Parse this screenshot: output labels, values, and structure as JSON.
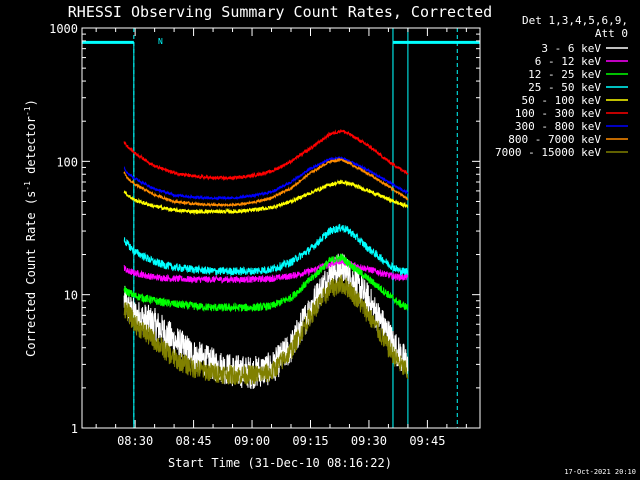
{
  "chart_data": {
    "type": "line",
    "title": "RHESSI Observing Summary Count Rates, Corrected",
    "xlabel": "Start Time (31-Dec-10 08:16:22)",
    "ylabel": "Corrected Count Rate (s⁻¹ detector⁻¹)",
    "ylabel_parts": [
      "Corrected Count Rate (s",
      "-1",
      " detector",
      "-1",
      ")"
    ],
    "y_scale": "log",
    "ylim": [
      1,
      1000
    ],
    "xlim": [
      "08:16:22",
      "09:58:30"
    ],
    "x_tick_labels": [
      "08:30",
      "08:45",
      "09:00",
      "09:15",
      "09:30",
      "09:45"
    ],
    "x_tick_values": [
      "08:30",
      "08:45",
      "09:00",
      "09:15",
      "09:30",
      "09:45"
    ],
    "y_tick_labels": [
      "1",
      "10",
      "100",
      "1000"
    ],
    "y_tick_values": [
      1,
      10,
      100,
      1000
    ],
    "grid": false,
    "legend_placement": "right",
    "legend_header": [
      "Det 1,3,4,5,6,9,",
      "Att 0"
    ],
    "timestamp": "17-Oct-2021 20:10",
    "night_marker_label": "N",
    "night_intervals": [
      [
        "08:16:22",
        "08:29:40"
      ],
      [
        "09:36:10",
        "09:58:30"
      ]
    ],
    "night_level": 780,
    "night_color": "#00ffff",
    "saa_lines": [
      "08:29:40",
      "09:52:40"
    ],
    "data_gap_lines": [
      "09:36:10",
      "09:40:00"
    ],
    "x": [
      "08:27:10",
      "08:28:00",
      "08:30:00",
      "08:35:00",
      "08:40:00",
      "08:45:00",
      "08:50:00",
      "08:55:00",
      "09:00:00",
      "09:05:00",
      "09:10:00",
      "09:15:00",
      "09:20:00",
      "09:23:00",
      "09:25:00",
      "09:30:00",
      "09:35:00",
      "09:38:00",
      "09:40:00"
    ],
    "series": [
      {
        "name": "3 - 6 keV",
        "color": "#ffffff",
        "noise": 0.5,
        "values": [
          9.0,
          8.0,
          7.0,
          6.0,
          4.5,
          3.5,
          3.0,
          2.7,
          2.6,
          2.8,
          4.0,
          8.0,
          14.0,
          16.0,
          14.0,
          9.0,
          5.0,
          3.5,
          3.0
        ]
      },
      {
        "name": "6 - 12 keV",
        "color": "#ff00ff",
        "noise": 0.1,
        "values": [
          16.0,
          15.0,
          14.5,
          13.5,
          13.2,
          13.0,
          13.0,
          13.0,
          13.0,
          13.2,
          13.8,
          15.0,
          17.0,
          18.0,
          17.0,
          15.5,
          14.0,
          13.5,
          13.5
        ]
      },
      {
        "name": "12 - 25 keV",
        "color": "#00ff00",
        "noise": 0.12,
        "values": [
          11.0,
          10.5,
          9.8,
          9.0,
          8.5,
          8.2,
          8.0,
          8.0,
          8.0,
          8.2,
          9.5,
          13.0,
          18.0,
          19.0,
          17.0,
          13.0,
          10.0,
          8.5,
          8.0
        ]
      },
      {
        "name": "25 - 50 keV",
        "color": "#00ffff",
        "noise": 0.12,
        "values": [
          26.0,
          24.0,
          21.0,
          17.5,
          16.0,
          15.5,
          15.0,
          15.0,
          15.0,
          15.5,
          17.5,
          22.0,
          30.0,
          32.0,
          30.0,
          22.0,
          17.0,
          15.0,
          15.0
        ]
      },
      {
        "name": "50 - 100 keV",
        "color": "#ffff00",
        "noise": 0.06,
        "values": [
          60.0,
          56.0,
          51.0,
          46.0,
          43.0,
          42.0,
          42.0,
          42.0,
          43.0,
          45.0,
          50.0,
          58.0,
          67.0,
          70.0,
          68.0,
          60.0,
          52.0,
          48.0,
          46.0
        ]
      },
      {
        "name": "100 - 300 keV",
        "color": "#ff0000",
        "noise": 0.05,
        "values": [
          140.0,
          130.0,
          115.0,
          92.0,
          82.0,
          77.0,
          75.0,
          75.0,
          78.0,
          84.0,
          100.0,
          125.0,
          160.0,
          170.0,
          160.0,
          130.0,
          100.0,
          88.0,
          82.0
        ]
      },
      {
        "name": "300 - 800 keV",
        "color": "#0000ff",
        "noise": 0.04,
        "values": [
          90.0,
          82.0,
          74.0,
          62.0,
          56.0,
          54.0,
          53.0,
          53.0,
          55.0,
          59.0,
          70.0,
          88.0,
          104.0,
          106.0,
          100.0,
          85.0,
          70.0,
          62.0,
          58.0
        ]
      },
      {
        "name": "800 - 7000 keV",
        "color": "#ff8c00",
        "noise": 0.04,
        "values": [
          82.0,
          75.0,
          67.0,
          56.0,
          50.0,
          48.0,
          47.0,
          47.0,
          49.0,
          53.0,
          63.0,
          82.0,
          100.0,
          103.0,
          97.0,
          80.0,
          65.0,
          57.0,
          52.0
        ]
      },
      {
        "name": "7000 - 15000 keV",
        "color": "#808000",
        "noise": 0.3,
        "values": [
          8.0,
          7.5,
          6.0,
          4.5,
          3.3,
          2.8,
          2.6,
          2.5,
          2.5,
          2.6,
          3.8,
          7.0,
          11.0,
          12.0,
          11.0,
          7.0,
          4.0,
          3.0,
          2.6
        ]
      }
    ]
  }
}
